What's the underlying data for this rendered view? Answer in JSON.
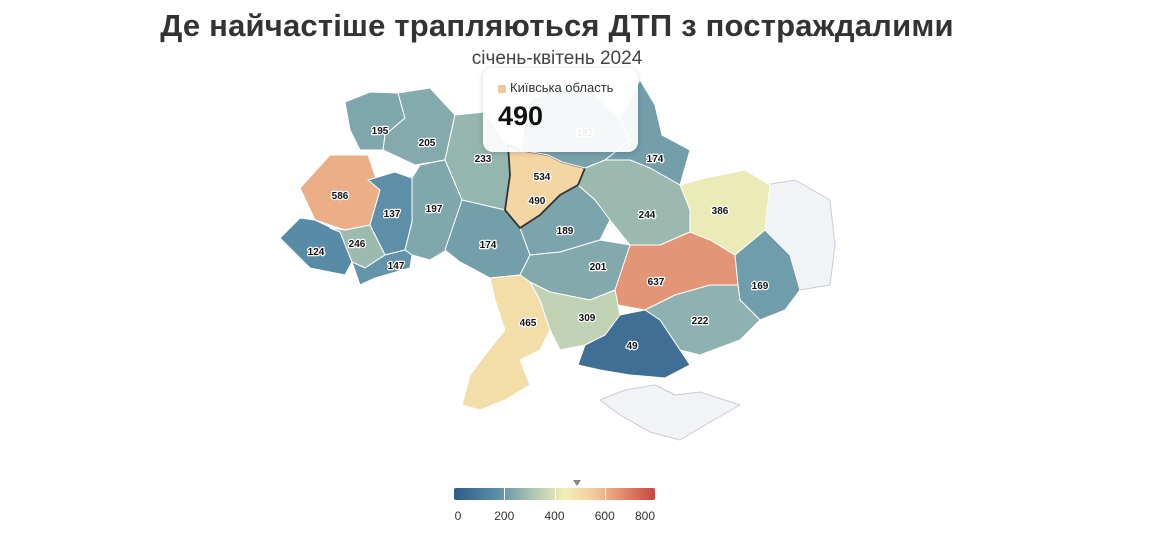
{
  "title": "Де найчастіше трапляються ДТП з постраждалими",
  "subtitle": "січень-квітень 2024",
  "tooltip": {
    "label": "Київська область",
    "value": "490",
    "color": "#f0c79a"
  },
  "no_data_color": "#f2f3f6",
  "chart_data": {
    "type": "choropleth",
    "metric": "ДТП з постраждалими",
    "regions": [
      {
        "name": "Волинська область",
        "value": 195
      },
      {
        "name": "Рівненська область",
        "value": 205
      },
      {
        "name": "Житомирська область",
        "value": 233
      },
      {
        "name": "Київська область",
        "value": 490
      },
      {
        "name": "м. Київ",
        "value": 534
      },
      {
        "name": "Чернігівська область",
        "value": 182
      },
      {
        "name": "Сумська область",
        "value": 174
      },
      {
        "name": "Харківська область",
        "value": 386
      },
      {
        "name": "Полтавська область",
        "value": 244
      },
      {
        "name": "Львівська область",
        "value": 586
      },
      {
        "name": "Тернопільська область",
        "value": 137
      },
      {
        "name": "Хмельницька область",
        "value": 197
      },
      {
        "name": "Вінницька область",
        "value": 174
      },
      {
        "name": "Черкаська область",
        "value": 189
      },
      {
        "name": "Закарпатська область",
        "value": 124
      },
      {
        "name": "Івано-Франківська область",
        "value": 246
      },
      {
        "name": "Чернівецька область",
        "value": 147
      },
      {
        "name": "Кіровоградська область",
        "value": 201
      },
      {
        "name": "Дніпропетровська область",
        "value": 637
      },
      {
        "name": "Донецька область",
        "value": 169
      },
      {
        "name": "Запорізька область",
        "value": 222
      },
      {
        "name": "Одеська область",
        "value": 465
      },
      {
        "name": "Миколаївська область",
        "value": 309
      },
      {
        "name": "Херсонська область",
        "value": 49
      }
    ],
    "no_data": [
      "Луганська область",
      "АР Крим"
    ],
    "legend": {
      "min": 0,
      "max": 800,
      "ticks": [
        "0",
        "200",
        "400",
        "600",
        "800"
      ],
      "hover_value": 490
    },
    "color_scale": [
      "#2e5c8a",
      "#5b8fa8",
      "#a9c2b2",
      "#f3f0b8",
      "#f3c99a",
      "#e0866a",
      "#c84540"
    ]
  }
}
